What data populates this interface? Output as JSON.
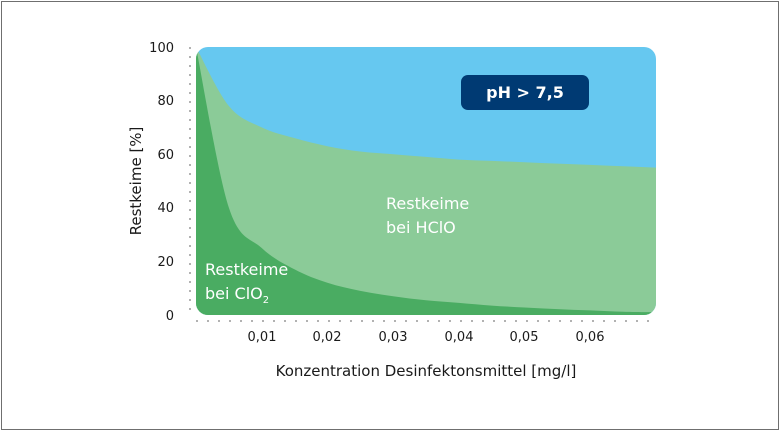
{
  "chart_data": {
    "type": "area",
    "xlabel": "Konzentration Desinfektonsmittel [mg/l]",
    "ylabel": "Restkeime [%]",
    "xlim": [
      0,
      0.07
    ],
    "ylim": [
      0,
      100
    ],
    "x_ticks": [
      "0,01",
      "0,02",
      "0,03",
      "0,04",
      "0,05",
      "0,06"
    ],
    "y_ticks": [
      "0",
      "20",
      "40",
      "60",
      "80",
      "100"
    ],
    "x": [
      0,
      0.005,
      0.01,
      0.015,
      0.02,
      0.025,
      0.03,
      0.035,
      0.04,
      0.045,
      0.05,
      0.055,
      0.06,
      0.065,
      0.07
    ],
    "series": [
      {
        "values": [
          100,
          78,
          70,
          66,
          63,
          61,
          60,
          59,
          58,
          57.5,
          57,
          56.5,
          56,
          55.5,
          55
        ],
        "color": "#8bcb98"
      },
      {
        "values": [
          100,
          40,
          25,
          17,
          12,
          9,
          7,
          5.5,
          4.5,
          3.5,
          2.8,
          2.2,
          1.7,
          1.2,
          1
        ],
        "color": "#4aac62"
      }
    ],
    "background_color": "#66c8f0",
    "annotations": {
      "badge": "pH > 7,5",
      "hclo_line1": "Restkeime",
      "hclo_line2": "bei HClO",
      "clo2_line1": "Restkeime",
      "clo2_line2": "bei ClO",
      "clo2_subscript": "2"
    },
    "badge_color": "#003a73"
  }
}
